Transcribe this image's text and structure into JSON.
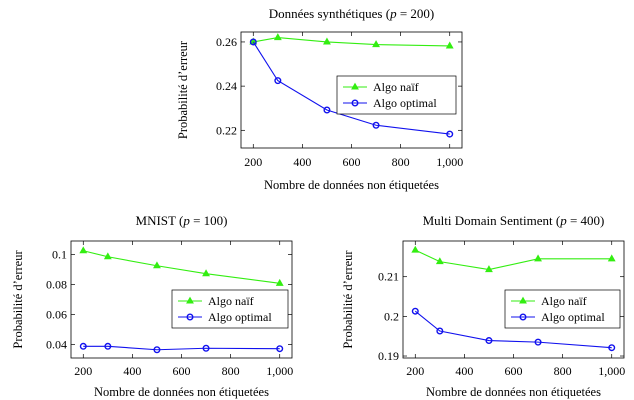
{
  "chart_data": [
    {
      "type": "line",
      "title_main": "Données synthétiques (",
      "title_var": "p",
      "title_rest": " = 200)",
      "xlabel": "Nombre de données non étiquetées",
      "ylabel": "Probabilité d’erreur",
      "xlim": [
        150,
        1050
      ],
      "ylim": [
        0.212,
        0.2645
      ],
      "x_ticks": [
        200,
        400,
        600,
        800,
        1000
      ],
      "x_tick_labels": [
        "200",
        "400",
        "600",
        "800",
        "1,000"
      ],
      "y_ticks": [
        0.22,
        0.24,
        0.26
      ],
      "y_tick_labels": [
        "0.22",
        "0.24",
        "0.26"
      ],
      "legend_position": "right",
      "series": [
        {
          "name": "Algo naïf",
          "color": "#33ee11",
          "marker": "triangle",
          "x": [
            200,
            300,
            500,
            700,
            1000
          ],
          "y": [
            0.26,
            0.262,
            0.26,
            0.2588,
            0.2582
          ]
        },
        {
          "name": "Algo optimal",
          "color": "#1111ee",
          "marker": "circle",
          "x": [
            200,
            300,
            500,
            700,
            1000
          ],
          "y": [
            0.26,
            0.2425,
            0.2292,
            0.2223,
            0.2183
          ]
        }
      ]
    },
    {
      "type": "line",
      "title_main": "MNIST (",
      "title_var": "p",
      "title_rest": " = 100)",
      "xlabel": "Nombre de données non étiquetées",
      "ylabel": "Probabilité d’erreur",
      "xlim": [
        150,
        1050
      ],
      "ylim": [
        0.031,
        0.109
      ],
      "x_ticks": [
        200,
        400,
        600,
        800,
        1000
      ],
      "x_tick_labels": [
        "200",
        "400",
        "600",
        "800",
        "1,000"
      ],
      "y_ticks": [
        0.04,
        0.06,
        0.08,
        0.1
      ],
      "y_tick_labels": [
        "0.04",
        "0.06",
        "0.08",
        "0.1"
      ],
      "legend_position": "right",
      "series": [
        {
          "name": "Algo naïf",
          "color": "#33ee11",
          "marker": "triangle",
          "x": [
            200,
            300,
            500,
            700,
            1000
          ],
          "y": [
            0.1025,
            0.0985,
            0.0925,
            0.0872,
            0.0808
          ]
        },
        {
          "name": "Algo optimal",
          "color": "#1111ee",
          "marker": "circle",
          "x": [
            200,
            300,
            500,
            700,
            1000
          ],
          "y": [
            0.0388,
            0.0388,
            0.0365,
            0.0375,
            0.0372
          ]
        }
      ]
    },
    {
      "type": "line",
      "title_main": "Multi Domain Sentiment (",
      "title_var": "p",
      "title_rest": " = 400)",
      "xlabel": "Nombre de données non étiquetées",
      "ylabel": "Probabilité d’erreur",
      "xlim": [
        150,
        1050
      ],
      "ylim": [
        0.1895,
        0.219
      ],
      "x_ticks": [
        200,
        400,
        600,
        800,
        1000
      ],
      "x_tick_labels": [
        "200",
        "400",
        "600",
        "800",
        "1,000"
      ],
      "y_ticks": [
        0.19,
        0.2,
        0.21
      ],
      "y_tick_labels": [
        "0.19",
        "0.2",
        "0.21"
      ],
      "legend_position": "right",
      "series": [
        {
          "name": "Algo naïf",
          "color": "#33ee11",
          "marker": "triangle",
          "x": [
            200,
            300,
            500,
            700,
            1000
          ],
          "y": [
            0.2167,
            0.2138,
            0.2118,
            0.2145,
            0.2145
          ]
        },
        {
          "name": "Algo optimal",
          "color": "#1111ee",
          "marker": "circle",
          "x": [
            200,
            300,
            500,
            700,
            1000
          ],
          "y": [
            0.2013,
            0.1963,
            0.1939,
            0.1935,
            0.1921
          ]
        }
      ]
    }
  ]
}
